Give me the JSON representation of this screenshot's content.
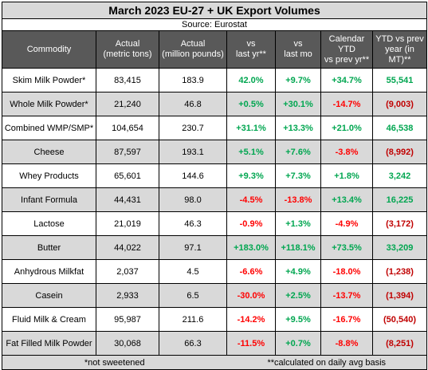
{
  "title": "March 2023 EU-27 + UK Export Volumes",
  "source": "Source:  Eurostat",
  "headers": {
    "commodity": "Commodity",
    "actual_tons": [
      "Actual",
      "(metric tons)"
    ],
    "actual_pounds": [
      "Actual",
      "(million pounds)"
    ],
    "vs_last_yr": [
      "vs",
      "last yr**"
    ],
    "vs_last_mo": [
      "vs",
      "last mo"
    ],
    "calendar_ytd": [
      "Calendar",
      "YTD",
      "vs prev yr**"
    ],
    "ytd_vs_prev": [
      "YTD vs prev",
      "year (in MT)**"
    ]
  },
  "rows": [
    {
      "commodity": "Skim Milk Powder*",
      "tons": "83,415",
      "pounds": "183.9",
      "vs_yr": "42.0%",
      "vs_mo": "+9.7%",
      "ytd_pct": "+34.7%",
      "ytd_mt": "55,541"
    },
    {
      "commodity": "Whole Milk Powder*",
      "tons": "21,240",
      "pounds": "46.8",
      "vs_yr": "+0.5%",
      "vs_mo": "+30.1%",
      "ytd_pct": "-14.7%",
      "ytd_mt": "(9,003)"
    },
    {
      "commodity": "Combined WMP/SMP*",
      "tons": "104,654",
      "pounds": "230.7",
      "vs_yr": "+31.1%",
      "vs_mo": "+13.3%",
      "ytd_pct": "+21.0%",
      "ytd_mt": "46,538"
    },
    {
      "commodity": "Cheese",
      "tons": "87,597",
      "pounds": "193.1",
      "vs_yr": "+5.1%",
      "vs_mo": "+7.6%",
      "ytd_pct": "-3.8%",
      "ytd_mt": "(8,992)"
    },
    {
      "commodity": "Whey Products",
      "tons": "65,601",
      "pounds": "144.6",
      "vs_yr": "+9.3%",
      "vs_mo": "+7.3%",
      "ytd_pct": "+1.8%",
      "ytd_mt": "3,242"
    },
    {
      "commodity": "Infant Formula",
      "tons": "44,431",
      "pounds": "98.0",
      "vs_yr": "-4.5%",
      "vs_mo": "-13.8%",
      "ytd_pct": "+13.4%",
      "ytd_mt": "16,225"
    },
    {
      "commodity": "Lactose",
      "tons": "21,019",
      "pounds": "46.3",
      "vs_yr": "-0.9%",
      "vs_mo": "+1.3%",
      "ytd_pct": "-4.9%",
      "ytd_mt": "(3,172)"
    },
    {
      "commodity": "Butter",
      "tons": "44,022",
      "pounds": "97.1",
      "vs_yr": "+183.0%",
      "vs_mo": "+118.1%",
      "ytd_pct": "+73.5%",
      "ytd_mt": "33,209"
    },
    {
      "commodity": "Anhydrous Milkfat",
      "tons": "2,037",
      "pounds": "4.5",
      "vs_yr": "-6.6%",
      "vs_mo": "+4.9%",
      "ytd_pct": "-18.0%",
      "ytd_mt": "(1,238)"
    },
    {
      "commodity": "Casein",
      "tons": "2,933",
      "pounds": "6.5",
      "vs_yr": "-30.0%",
      "vs_mo": "+2.5%",
      "ytd_pct": "-13.7%",
      "ytd_mt": "(1,394)"
    },
    {
      "commodity": "Fluid Milk & Cream",
      "tons": "95,987",
      "pounds": "211.6",
      "vs_yr": "-14.2%",
      "vs_mo": "+9.5%",
      "ytd_pct": "-16.7%",
      "ytd_mt": "(50,540)"
    },
    {
      "commodity": "Fat Filled Milk Powder",
      "tons": "30,068",
      "pounds": "66.3",
      "vs_yr": "-11.5%",
      "vs_mo": "+0.7%",
      "ytd_pct": "-8.8%",
      "ytd_mt": "(8,251)"
    }
  ],
  "footer": {
    "left": "*not sweetened",
    "right": "**calculated on daily avg basis"
  },
  "colors": {
    "positive": "#00a650",
    "negative": "#ff0000",
    "header_bg": "#595959",
    "shade_bg": "#d9d9d9"
  }
}
